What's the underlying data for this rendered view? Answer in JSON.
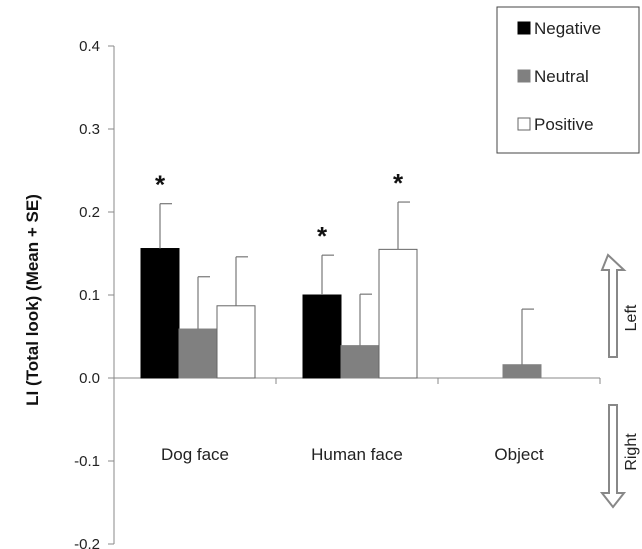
{
  "chart_data": {
    "type": "bar",
    "ylabel": "LI (Total look)  (Mean + SE)",
    "ylim": [
      -0.2,
      0.4
    ],
    "yticks": [
      {
        "value": 0.4,
        "label": "0.4"
      },
      {
        "value": 0.3,
        "label": "0.3"
      },
      {
        "value": 0.2,
        "label": "0.2"
      },
      {
        "value": 0.1,
        "label": "0.1"
      },
      {
        "value": 0.0,
        "label": "0.0"
      },
      {
        "value": -0.1,
        "label": "-0.1"
      },
      {
        "value": -0.2,
        "label": "-0.2"
      }
    ],
    "categories": [
      "Dog face",
      "Human face",
      "Object"
    ],
    "series": [
      {
        "name": "Negative",
        "color": "#000000",
        "values": [
          0.156,
          0.1,
          null
        ],
        "errors": [
          0.054,
          0.048,
          null
        ]
      },
      {
        "name": "Neutral",
        "color": "#808080",
        "values": [
          0.059,
          0.039,
          0.016
        ],
        "errors": [
          0.063,
          0.062,
          0.067
        ]
      },
      {
        "name": "Positive",
        "color": "#ffffff",
        "values": [
          0.087,
          0.155,
          null
        ],
        "errors": [
          0.059,
          0.057,
          null
        ]
      }
    ],
    "significance": [
      {
        "category": 0,
        "series": 0,
        "label": "*"
      },
      {
        "category": 1,
        "series": 0,
        "label": "*"
      },
      {
        "category": 1,
        "series": 2,
        "label": "*"
      }
    ],
    "legend": {
      "position": "top-right"
    },
    "side_labels": {
      "up": "Left",
      "down": "Right"
    }
  }
}
